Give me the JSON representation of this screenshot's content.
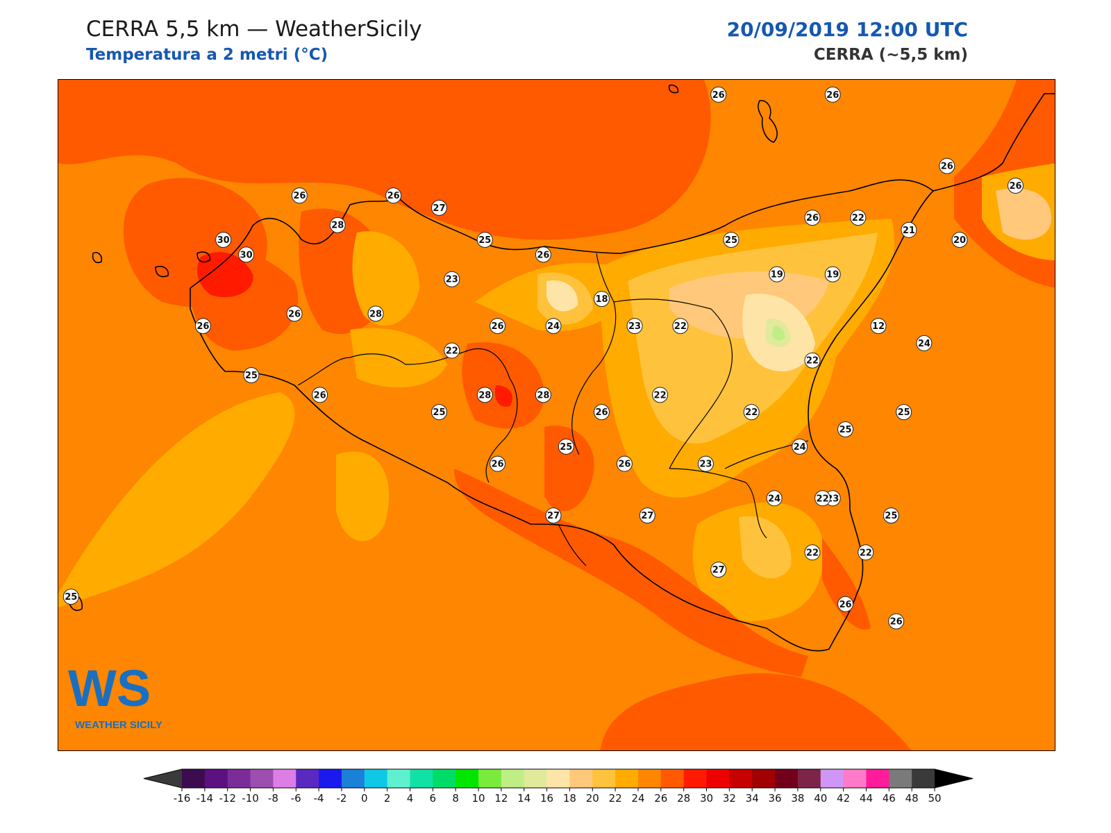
{
  "header": {
    "title": "CERRA 5,5 km — WeatherSicily",
    "subtitle": "Temperatura a 2 metri (°C)",
    "datetime": "20/09/2019 12:00 UTC",
    "model": "CERRA (~5,5 km)"
  },
  "logo": {
    "mark": "WS",
    "name": "WEATHER SICILY"
  },
  "map": {
    "field": "2m temperature",
    "unit": "°C",
    "background_value": 24,
    "station_labels": [
      {
        "value": 26,
        "lon": 14.55,
        "lat": 38.79
      },
      {
        "value": 26,
        "lon": 15.0,
        "lat": 38.79
      },
      {
        "value": 26,
        "lon": 12.9,
        "lat": 38.38
      },
      {
        "value": 26,
        "lon": 13.27,
        "lat": 38.38
      },
      {
        "value": 27,
        "lon": 13.45,
        "lat": 38.33
      },
      {
        "value": 28,
        "lon": 13.05,
        "lat": 38.26
      },
      {
        "value": 30,
        "lon": 12.6,
        "lat": 38.2
      },
      {
        "value": 30,
        "lon": 12.69,
        "lat": 38.14
      },
      {
        "value": 25,
        "lon": 13.63,
        "lat": 38.2
      },
      {
        "value": 26,
        "lon": 13.86,
        "lat": 38.14
      },
      {
        "value": 23,
        "lon": 13.5,
        "lat": 38.04
      },
      {
        "value": 18,
        "lon": 14.09,
        "lat": 37.96
      },
      {
        "value": 25,
        "lon": 14.6,
        "lat": 38.2
      },
      {
        "value": 26,
        "lon": 14.92,
        "lat": 38.29
      },
      {
        "value": 22,
        "lon": 15.1,
        "lat": 38.29
      },
      {
        "value": 21,
        "lon": 15.3,
        "lat": 38.24
      },
      {
        "value": 20,
        "lon": 15.5,
        "lat": 38.2
      },
      {
        "value": 26,
        "lon": 15.45,
        "lat": 38.5
      },
      {
        "value": 26,
        "lon": 15.72,
        "lat": 38.42
      },
      {
        "value": 19,
        "lon": 14.78,
        "lat": 38.06
      },
      {
        "value": 19,
        "lon": 15.0,
        "lat": 38.06
      },
      {
        "value": 12,
        "lon": 15.18,
        "lat": 37.85
      },
      {
        "value": 24,
        "lon": 15.36,
        "lat": 37.78
      },
      {
        "value": 26,
        "lon": 12.52,
        "lat": 37.85
      },
      {
        "value": 26,
        "lon": 12.88,
        "lat": 37.9
      },
      {
        "value": 28,
        "lon": 13.2,
        "lat": 37.9
      },
      {
        "value": 26,
        "lon": 13.68,
        "lat": 37.85
      },
      {
        "value": 24,
        "lon": 13.9,
        "lat": 37.85
      },
      {
        "value": 23,
        "lon": 14.22,
        "lat": 37.85
      },
      {
        "value": 22,
        "lon": 14.4,
        "lat": 37.85
      },
      {
        "value": 22,
        "lon": 13.5,
        "lat": 37.75
      },
      {
        "value": 22,
        "lon": 14.92,
        "lat": 37.71
      },
      {
        "value": 25,
        "lon": 12.71,
        "lat": 37.65
      },
      {
        "value": 26,
        "lon": 12.98,
        "lat": 37.57
      },
      {
        "value": 25,
        "lon": 13.45,
        "lat": 37.5
      },
      {
        "value": 28,
        "lon": 13.63,
        "lat": 37.57
      },
      {
        "value": 28,
        "lon": 13.86,
        "lat": 37.57
      },
      {
        "value": 26,
        "lon": 14.09,
        "lat": 37.5
      },
      {
        "value": 22,
        "lon": 14.32,
        "lat": 37.57
      },
      {
        "value": 22,
        "lon": 14.68,
        "lat": 37.5
      },
      {
        "value": 25,
        "lon": 15.05,
        "lat": 37.43
      },
      {
        "value": 25,
        "lon": 15.28,
        "lat": 37.5
      },
      {
        "value": 24,
        "lon": 14.87,
        "lat": 37.36
      },
      {
        "value": 25,
        "lon": 13.95,
        "lat": 37.36
      },
      {
        "value": 26,
        "lon": 14.18,
        "lat": 37.29
      },
      {
        "value": 23,
        "lon": 14.5,
        "lat": 37.29
      },
      {
        "value": 26,
        "lon": 13.68,
        "lat": 37.29
      },
      {
        "value": 23,
        "lon": 15.0,
        "lat": 37.15
      },
      {
        "value": 24,
        "lon": 14.77,
        "lat": 37.15
      },
      {
        "value": 22,
        "lon": 14.96,
        "lat": 37.15
      },
      {
        "value": 25,
        "lon": 15.23,
        "lat": 37.08
      },
      {
        "value": 27,
        "lon": 13.9,
        "lat": 37.08
      },
      {
        "value": 27,
        "lon": 14.27,
        "lat": 37.08
      },
      {
        "value": 22,
        "lon": 14.92,
        "lat": 36.93
      },
      {
        "value": 22,
        "lon": 15.13,
        "lat": 36.93
      },
      {
        "value": 27,
        "lon": 14.55,
        "lat": 36.86
      },
      {
        "value": 26,
        "lon": 15.05,
        "lat": 36.72
      },
      {
        "value": 26,
        "lon": 15.25,
        "lat": 36.65
      },
      {
        "value": 25,
        "lon": 12.0,
        "lat": 36.75
      }
    ]
  },
  "colorbar": {
    "ticks": [
      "-16",
      "-14",
      "-12",
      "-10",
      "-8",
      "-6",
      "-4",
      "-2",
      "0",
      "2",
      "4",
      "6",
      "8",
      "10",
      "12",
      "14",
      "16",
      "18",
      "20",
      "22",
      "24",
      "26",
      "28",
      "30",
      "32",
      "34",
      "36",
      "38",
      "40",
      "42",
      "44",
      "46",
      "48",
      "50"
    ],
    "colors": [
      "#3d0c4f",
      "#5c1180",
      "#7a2d99",
      "#9d4fb0",
      "#dd7de6",
      "#5a2ac0",
      "#1a1aef",
      "#1a80d8",
      "#0fc8e5",
      "#5ef0cf",
      "#12e1a5",
      "#00dd66",
      "#00e600",
      "#7aea3c",
      "#bfee85",
      "#e0ea9a",
      "#ffe4a8",
      "#ffc87a",
      "#ffc23d",
      "#ffab00",
      "#ff8600",
      "#ff5a00",
      "#ff1a00",
      "#ee0000",
      "#c70000",
      "#a00000",
      "#73001a",
      "#7d2449",
      "#cf96f5",
      "#ff7ac8",
      "#ff1c9a",
      "#7a7a7a",
      "#3a3a3a"
    ],
    "under_color": "#3a3a3a",
    "over_color": "#000000"
  }
}
